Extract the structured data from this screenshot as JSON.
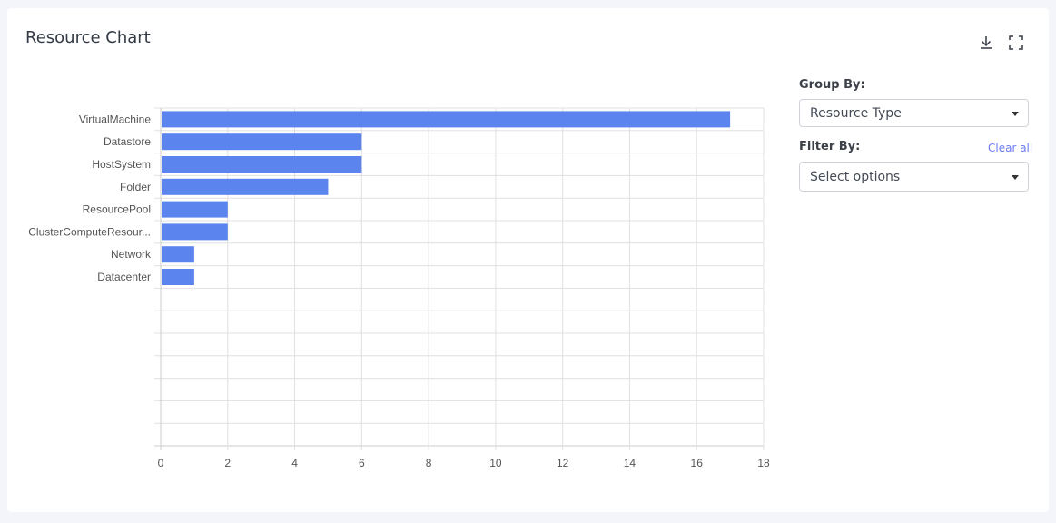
{
  "header": {
    "title": "Resource Chart",
    "download_icon": "download-icon",
    "fullscreen_icon": "fullscreen-icon"
  },
  "controls": {
    "group_by_label": "Group By:",
    "group_by_value": "Resource Type",
    "filter_by_label": "Filter By:",
    "clear_all": "Clear all",
    "filter_placeholder": "Select options"
  },
  "colors": {
    "bar": "#5b84ee",
    "grid": "#e0e0e0",
    "link": "#6d7cf0"
  },
  "chart_data": {
    "type": "bar",
    "orientation": "horizontal",
    "categories": [
      "VirtualMachine",
      "Datastore",
      "HostSystem",
      "Folder",
      "ResourcePool",
      "ClusterComputeResour...",
      "Network",
      "Datacenter",
      "",
      "",
      "",
      "",
      "",
      "",
      ""
    ],
    "values": [
      17,
      6,
      6,
      5,
      2,
      2,
      1,
      1,
      null,
      null,
      null,
      null,
      null,
      null,
      null
    ],
    "xlim": [
      0,
      18
    ],
    "xticks": [
      "0",
      "2",
      "4",
      "6",
      "8",
      "10",
      "12",
      "14",
      "16",
      "18"
    ],
    "grid": true,
    "title": "",
    "xlabel": "",
    "ylabel": ""
  }
}
